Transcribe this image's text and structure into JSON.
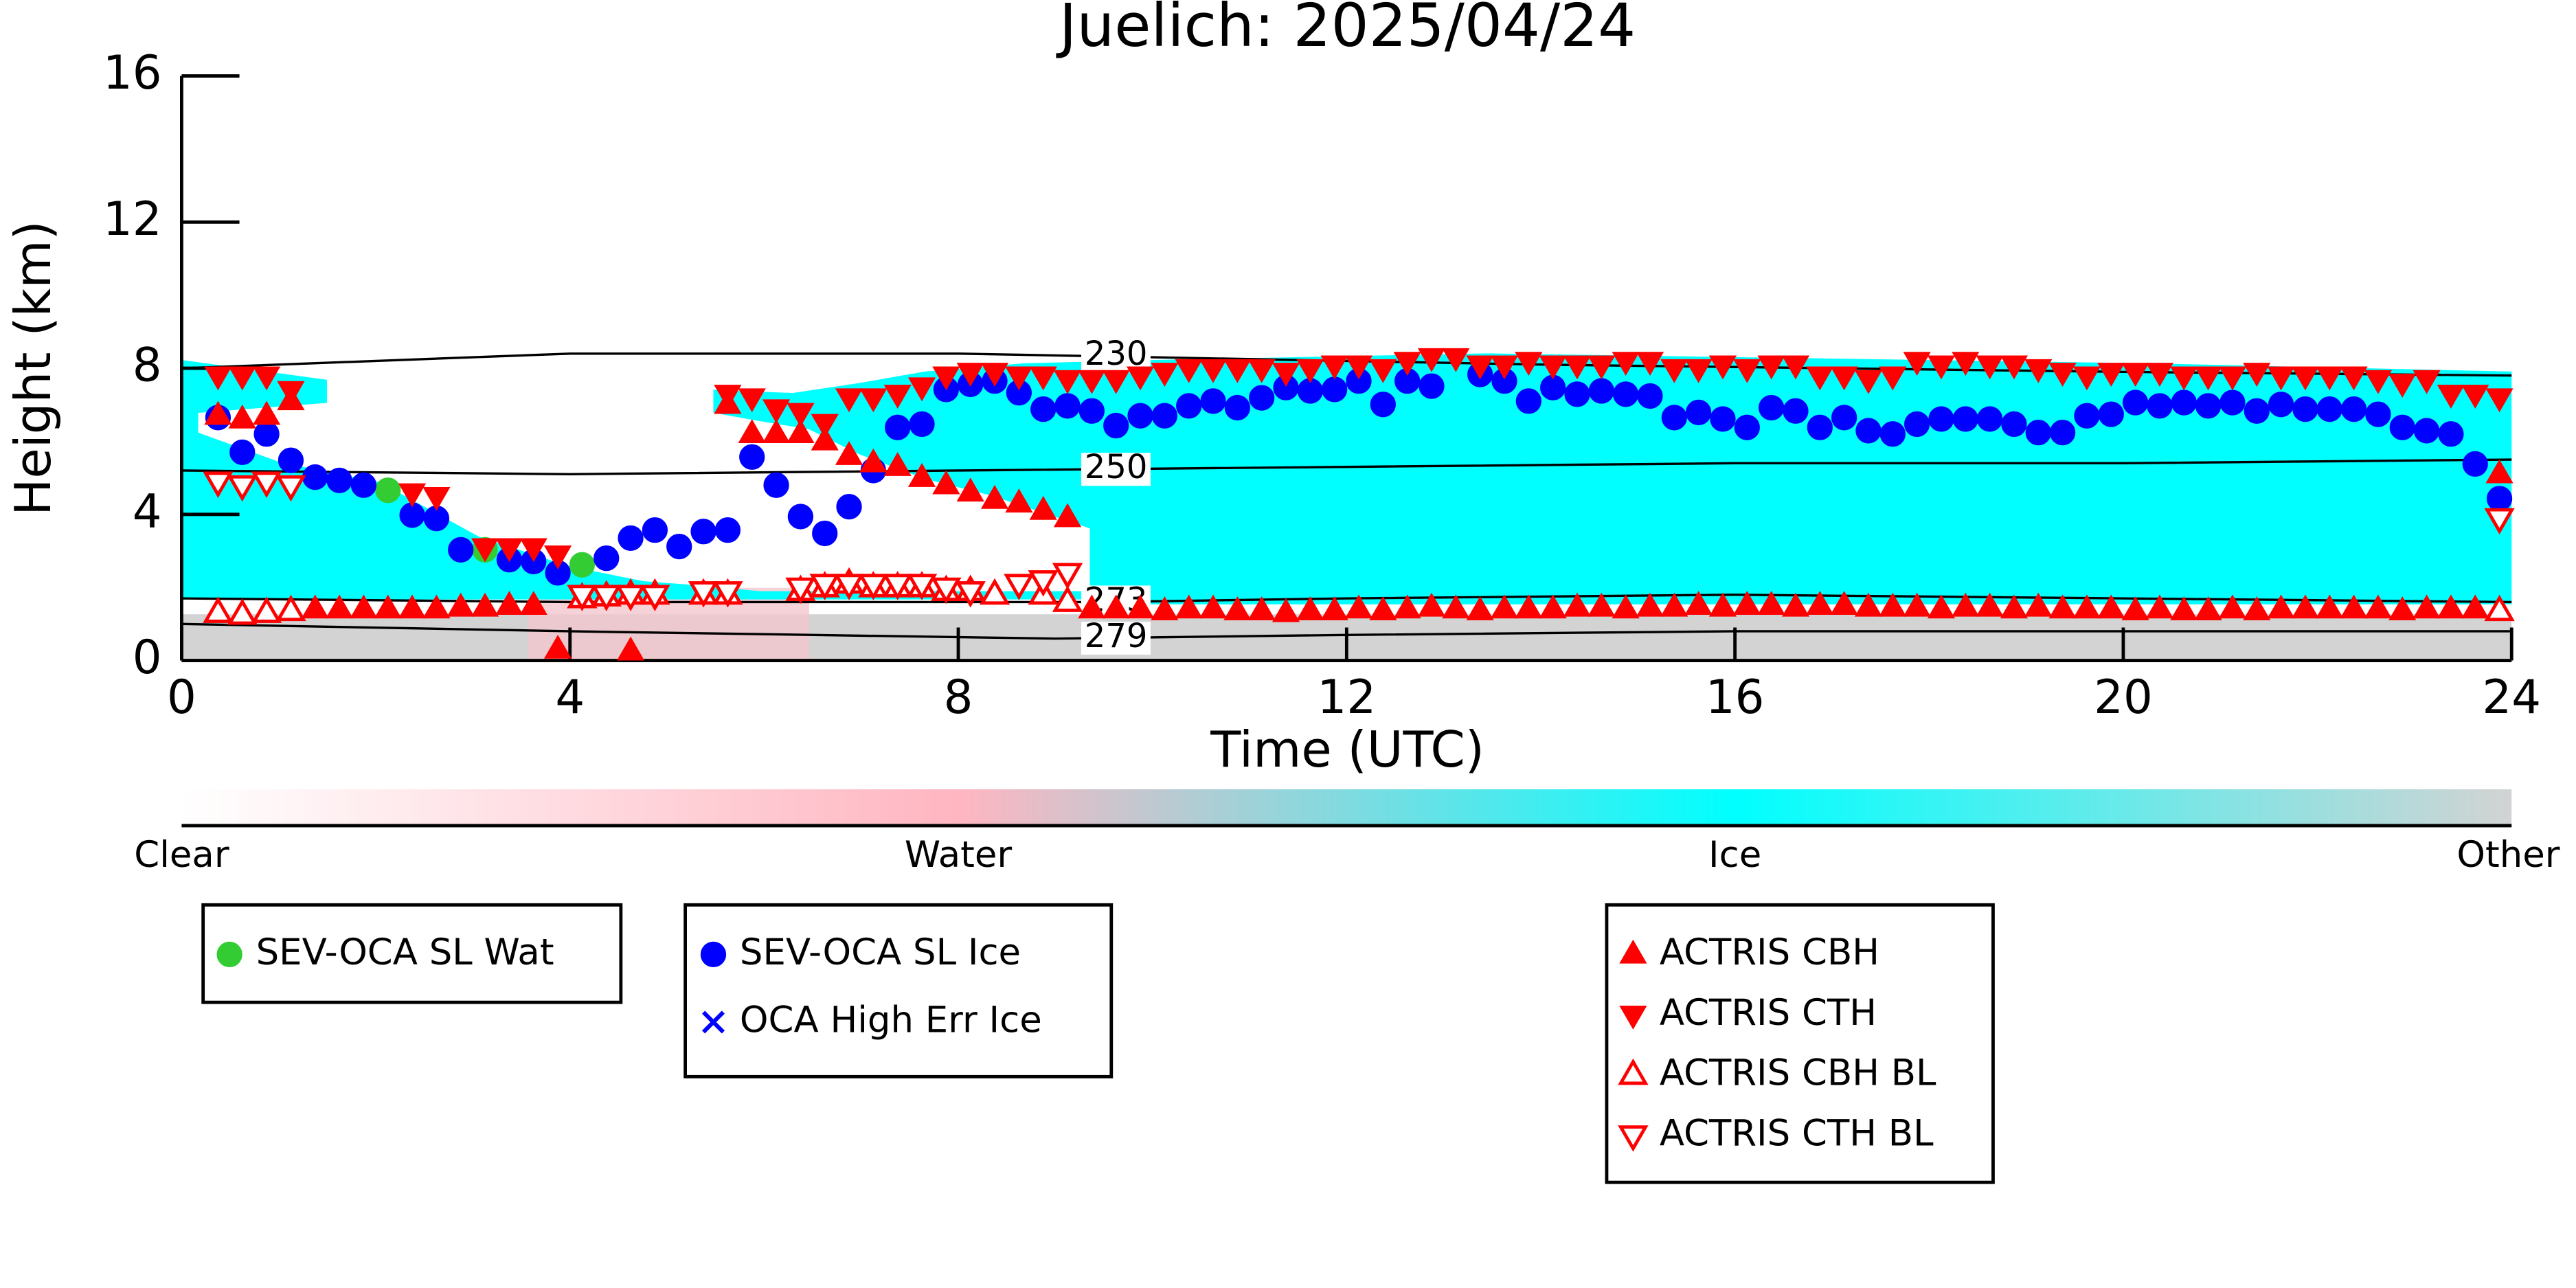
{
  "chart_data": {
    "type": "scatter",
    "title": "Juelich: 2025/04/24",
    "xlabel": "Time (UTC)",
    "ylabel": "Height (km)",
    "xlim": [
      0,
      24
    ],
    "xticks": [
      0,
      4,
      8,
      12,
      16,
      20,
      24
    ],
    "ylim": [
      0,
      16
    ],
    "yticks": [
      0,
      4,
      8,
      12,
      16
    ],
    "series": [
      {
        "name": "SEV-OCA SL Wat",
        "color": "#33cc33",
        "marker": "circle",
        "filled": true,
        "x": [
          2.125,
          3.125,
          4.125
        ],
        "values": [
          4.66,
          3.03,
          2.62
        ]
      },
      {
        "name": "SEV-OCA SL Ice",
        "color": "#0000ff",
        "marker": "circle",
        "filled": true,
        "x": [
          0.375,
          0.625,
          0.875,
          1.125,
          1.375,
          1.625,
          1.875,
          2.375,
          2.625,
          2.875,
          3.375,
          3.625,
          3.875,
          4.375,
          4.625,
          4.875,
          5.125,
          5.375,
          5.625,
          5.875,
          6.125,
          6.375,
          6.625,
          6.875,
          7.125,
          7.375,
          7.625,
          7.875,
          8.125,
          8.375,
          8.625,
          8.875,
          9.125,
          9.375,
          9.625,
          9.875,
          10.125,
          10.375,
          10.625,
          10.875,
          11.125,
          11.375,
          11.625,
          11.875,
          12.125,
          12.375,
          12.625,
          12.875,
          13.375,
          13.625,
          13.875,
          14.125,
          14.375,
          14.625,
          14.875,
          15.125,
          15.375,
          15.625,
          15.875,
          16.125,
          16.375,
          16.625,
          16.875,
          17.125,
          17.375,
          17.625,
          17.875,
          18.125,
          18.375,
          18.625,
          18.875,
          19.125,
          19.375,
          19.625,
          19.875,
          20.125,
          20.375,
          20.625,
          20.875,
          21.125,
          21.375,
          21.625,
          21.875,
          22.125,
          22.375,
          22.625,
          22.875,
          23.125,
          23.375,
          23.625,
          23.875
        ],
        "values": [
          6.65,
          5.7,
          6.2,
          5.48,
          5.02,
          4.93,
          4.8,
          3.98,
          3.89,
          3.03,
          2.76,
          2.71,
          2.4,
          2.8,
          3.35,
          3.57,
          3.12,
          3.53,
          3.57,
          5.57,
          4.8,
          3.94,
          3.48,
          4.21,
          5.2,
          6.38,
          6.47,
          7.42,
          7.56,
          7.65,
          7.33,
          6.88,
          6.97,
          6.83,
          6.43,
          6.7,
          6.7,
          6.97,
          7.1,
          6.92,
          7.19,
          7.47,
          7.38,
          7.42,
          7.65,
          7.01,
          7.65,
          7.51,
          7.83,
          7.65,
          7.1,
          7.47,
          7.29,
          7.38,
          7.29,
          7.24,
          6.65,
          6.79,
          6.61,
          6.38,
          6.92,
          6.83,
          6.38,
          6.65,
          6.29,
          6.2,
          6.47,
          6.61,
          6.61,
          6.61,
          6.47,
          6.24,
          6.24,
          6.7,
          6.74,
          7.06,
          6.97,
          7.06,
          6.97,
          7.06,
          6.83,
          7.01,
          6.88,
          6.88,
          6.88,
          6.74,
          6.38,
          6.29,
          6.2,
          5.38,
          4.43
        ]
      },
      {
        "name": "OCA High Err Ice",
        "color": "#0000ff",
        "marker": "x",
        "filled": true,
        "x": [],
        "values": []
      },
      {
        "name": "ACTRIS CBH",
        "color": "#ff0000",
        "marker": "triangle-up",
        "filled": true,
        "x": [
          0.375,
          0.625,
          0.875,
          1.125,
          5.625,
          5.875,
          6.125,
          6.375,
          6.625,
          6.875,
          7.125,
          7.375,
          7.625,
          7.875,
          8.125,
          8.375,
          8.625,
          8.875,
          9.125,
          1.375,
          1.625,
          1.875,
          2.125,
          2.375,
          2.625,
          2.875,
          3.125,
          3.375,
          3.625,
          3.875,
          4.625,
          9.375,
          9.625,
          9.875,
          10.125,
          10.375,
          10.625,
          10.875,
          11.125,
          11.375,
          11.625,
          11.875,
          12.125,
          12.375,
          12.625,
          12.875,
          13.125,
          13.375,
          13.625,
          13.875,
          14.125,
          14.375,
          14.625,
          14.875,
          15.125,
          15.375,
          15.625,
          15.875,
          16.125,
          16.375,
          16.625,
          16.875,
          17.125,
          17.375,
          17.625,
          17.875,
          18.125,
          18.375,
          18.625,
          18.875,
          19.125,
          19.375,
          19.625,
          19.875,
          20.125,
          20.375,
          20.625,
          20.875,
          21.125,
          21.375,
          21.625,
          21.875,
          22.125,
          22.375,
          22.625,
          22.875,
          23.125,
          23.375,
          23.625,
          23.875,
          23.875
        ],
        "values": [
          6.7,
          6.6,
          6.7,
          7.1,
          7.0,
          6.2,
          6.2,
          6.2,
          6.0,
          5.6,
          5.4,
          5.3,
          5.0,
          4.8,
          4.6,
          4.4,
          4.3,
          4.1,
          3.9,
          1.4,
          1.4,
          1.4,
          1.4,
          1.4,
          1.4,
          1.45,
          1.45,
          1.5,
          1.5,
          0.3,
          0.25,
          1.4,
          1.4,
          1.4,
          1.35,
          1.4,
          1.4,
          1.35,
          1.35,
          1.3,
          1.35,
          1.35,
          1.4,
          1.35,
          1.4,
          1.45,
          1.4,
          1.35,
          1.4,
          1.4,
          1.4,
          1.45,
          1.45,
          1.4,
          1.45,
          1.45,
          1.5,
          1.45,
          1.5,
          1.5,
          1.45,
          1.5,
          1.5,
          1.45,
          1.45,
          1.45,
          1.4,
          1.45,
          1.45,
          1.4,
          1.45,
          1.4,
          1.4,
          1.4,
          1.35,
          1.4,
          1.35,
          1.35,
          1.4,
          1.35,
          1.4,
          1.4,
          1.4,
          1.4,
          1.4,
          1.35,
          1.4,
          1.4,
          1.4,
          1.35,
          5.1
        ]
      },
      {
        "name": "ACTRIS CTH",
        "color": "#ff0000",
        "marker": "triangle-down",
        "filled": true,
        "x": [
          0.375,
          0.625,
          0.875,
          1.125,
          2.375,
          2.625,
          3.125,
          3.375,
          3.625,
          3.875,
          5.625,
          5.875,
          6.125,
          6.375,
          6.625,
          6.875,
          7.125,
          7.375,
          7.625,
          7.875,
          8.125,
          8.375,
          8.625,
          8.875,
          9.125,
          9.375,
          9.625,
          9.875,
          10.125,
          10.375,
          10.625,
          10.875,
          11.125,
          11.375,
          11.625,
          11.875,
          12.125,
          12.375,
          12.625,
          12.875,
          13.125,
          13.375,
          13.625,
          13.875,
          14.125,
          14.375,
          14.625,
          14.875,
          15.125,
          15.375,
          15.625,
          15.875,
          16.125,
          16.375,
          16.625,
          16.875,
          17.125,
          17.375,
          17.625,
          17.875,
          18.125,
          18.375,
          18.625,
          18.875,
          19.125,
          19.375,
          19.625,
          19.875,
          20.125,
          20.375,
          20.625,
          20.875,
          21.125,
          21.375,
          21.625,
          21.875,
          22.125,
          22.375,
          22.625,
          22.875,
          23.125,
          23.375,
          23.625,
          23.875
        ],
        "values": [
          7.8,
          7.8,
          7.8,
          7.4,
          4.6,
          4.5,
          3.1,
          3.1,
          3.1,
          2.9,
          7.3,
          7.2,
          6.9,
          6.8,
          6.5,
          7.2,
          7.2,
          7.3,
          7.5,
          7.8,
          7.9,
          7.9,
          7.8,
          7.8,
          7.7,
          7.7,
          7.7,
          7.8,
          7.9,
          8.0,
          8.0,
          8.0,
          8.0,
          7.9,
          8.0,
          8.1,
          8.1,
          8.0,
          8.2,
          8.3,
          8.3,
          8.1,
          8.1,
          8.2,
          8.1,
          8.1,
          8.1,
          8.2,
          8.2,
          8.0,
          8.0,
          8.1,
          8.0,
          8.1,
          8.1,
          7.8,
          7.8,
          7.7,
          7.8,
          8.2,
          8.1,
          8.2,
          8.1,
          8.1,
          8.0,
          7.9,
          7.8,
          7.9,
          7.9,
          7.9,
          7.8,
          7.8,
          7.8,
          7.9,
          7.8,
          7.8,
          7.8,
          7.8,
          7.7,
          7.6,
          7.7,
          7.3,
          7.3,
          7.2
        ]
      },
      {
        "name": "ACTRIS CBH BL",
        "color": "#ff0000",
        "marker": "triangle-up",
        "filled": false,
        "x": [
          0.375,
          0.625,
          0.875,
          1.125,
          4.125,
          4.375,
          4.625,
          4.875,
          5.375,
          5.625,
          6.375,
          6.625,
          6.875,
          7.125,
          7.375,
          7.625,
          7.875,
          8.125,
          8.375,
          8.875,
          9.125,
          23.875
        ],
        "values": [
          1.3,
          1.25,
          1.3,
          1.35,
          1.7,
          1.75,
          1.8,
          1.8,
          1.8,
          1.8,
          1.9,
          2.0,
          2.1,
          2.0,
          2.0,
          2.0,
          1.9,
          1.9,
          1.8,
          1.8,
          1.6,
          1.35
        ]
      },
      {
        "name": "ACTRIS CTH BL",
        "color": "#ff0000",
        "marker": "triangle-down",
        "filled": false,
        "x": [
          0.375,
          0.625,
          0.875,
          1.125,
          4.125,
          4.375,
          4.625,
          4.875,
          5.375,
          5.625,
          6.375,
          6.625,
          6.875,
          7.125,
          7.375,
          7.625,
          7.875,
          8.125,
          8.625,
          8.875,
          9.125,
          23.875
        ],
        "values": [
          4.9,
          4.8,
          4.9,
          4.8,
          1.8,
          1.8,
          1.8,
          1.8,
          1.9,
          1.9,
          2.0,
          2.1,
          2.1,
          2.1,
          2.1,
          2.1,
          2.0,
          1.9,
          2.1,
          2.2,
          2.4,
          3.9
        ]
      }
    ],
    "contours": [
      {
        "level": 230,
        "x": [
          0,
          4,
          8,
          10,
          14,
          20,
          24
        ],
        "values": [
          8.0,
          8.4,
          8.4,
          8.3,
          8.1,
          7.9,
          7.8
        ]
      },
      {
        "level": 250,
        "x": [
          0,
          4,
          8,
          12,
          16,
          20,
          24
        ],
        "values": [
          5.2,
          5.1,
          5.2,
          5.3,
          5.4,
          5.4,
          5.5
        ]
      },
      {
        "level": 273,
        "x": [
          0,
          4,
          8,
          9.5,
          12,
          16,
          20,
          24
        ],
        "values": [
          1.7,
          1.6,
          1.6,
          1.6,
          1.7,
          1.8,
          1.7,
          1.6
        ]
      },
      {
        "level": 279,
        "x": [
          0,
          4,
          9,
          12,
          16,
          24
        ],
        "values": [
          1.0,
          0.8,
          0.6,
          0.7,
          0.8,
          0.8
        ]
      }
    ],
    "colorbar": {
      "labels": [
        "Clear",
        "Water",
        "Ice",
        "Other"
      ],
      "colors": [
        "#ffffff",
        "#ffb6c1",
        "#00ffff",
        "#d3d3d3"
      ]
    }
  }
}
